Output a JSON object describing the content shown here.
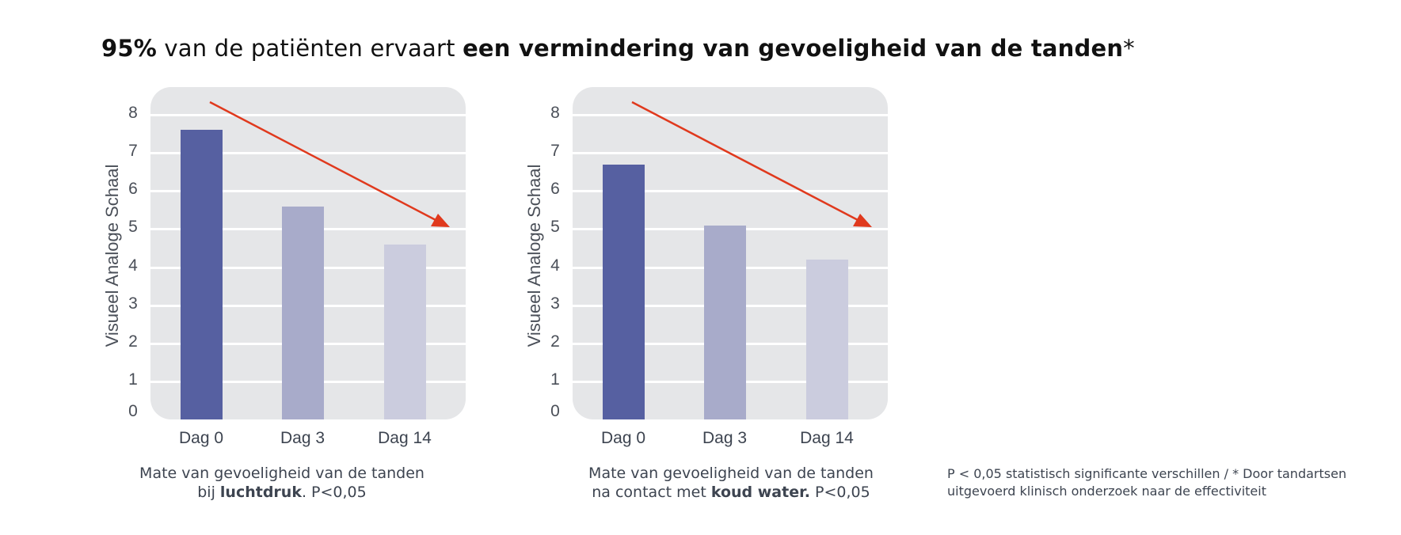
{
  "headline": {
    "part1_bold": "95%",
    "part2": " van de patiënten ervaart ",
    "part3_bold": "een vermindering van gevoeligheid van de tanden",
    "part4": "*"
  },
  "colors": {
    "panel_bg": "#e5e6e8",
    "gridline": "#ffffff",
    "bar_dag0": "#5660a1",
    "bar_dag3": "#a8abca",
    "bar_dag14": "#cbccde",
    "arrow": "#e0391d"
  },
  "chart_data": [
    {
      "type": "bar",
      "title": "",
      "xlabel": "",
      "ylabel": "Visueel Analoge Schaal",
      "categories": [
        "Dag 0",
        "Dag 3",
        "Dag 14"
      ],
      "values": [
        7.6,
        5.6,
        4.6
      ],
      "ylim": [
        0,
        8
      ],
      "yticks": [
        "0",
        "1",
        "2",
        "3",
        "4",
        "5",
        "6",
        "7",
        "8"
      ],
      "grid": true,
      "annotation": "red downward trend arrow",
      "caption_line1": "Mate van gevoeligheid van de tanden",
      "caption_line2_pre": "bij ",
      "caption_line2_bold": "luchtdruk",
      "caption_line2_post": ".   P<0,05"
    },
    {
      "type": "bar",
      "title": "",
      "xlabel": "",
      "ylabel": "Visueel Analoge Schaal",
      "categories": [
        "Dag 0",
        "Dag 3",
        "Dag 14"
      ],
      "values": [
        6.7,
        5.1,
        4.2
      ],
      "ylim": [
        0,
        8
      ],
      "yticks": [
        "0",
        "1",
        "2",
        "3",
        "4",
        "5",
        "6",
        "7",
        "8"
      ],
      "grid": true,
      "annotation": "red downward trend arrow",
      "caption_line1": "Mate van gevoeligheid van de tanden",
      "caption_line2_pre": "na contact met ",
      "caption_line2_bold": "koud water.",
      "caption_line2_post": "   P<0,05"
    }
  ],
  "footnote": {
    "line1": "P < 0,05 statistisch significante verschillen / * Door tandartsen",
    "line2": "uitgevoerd klinisch onderzoek naar de effectiviteit"
  }
}
